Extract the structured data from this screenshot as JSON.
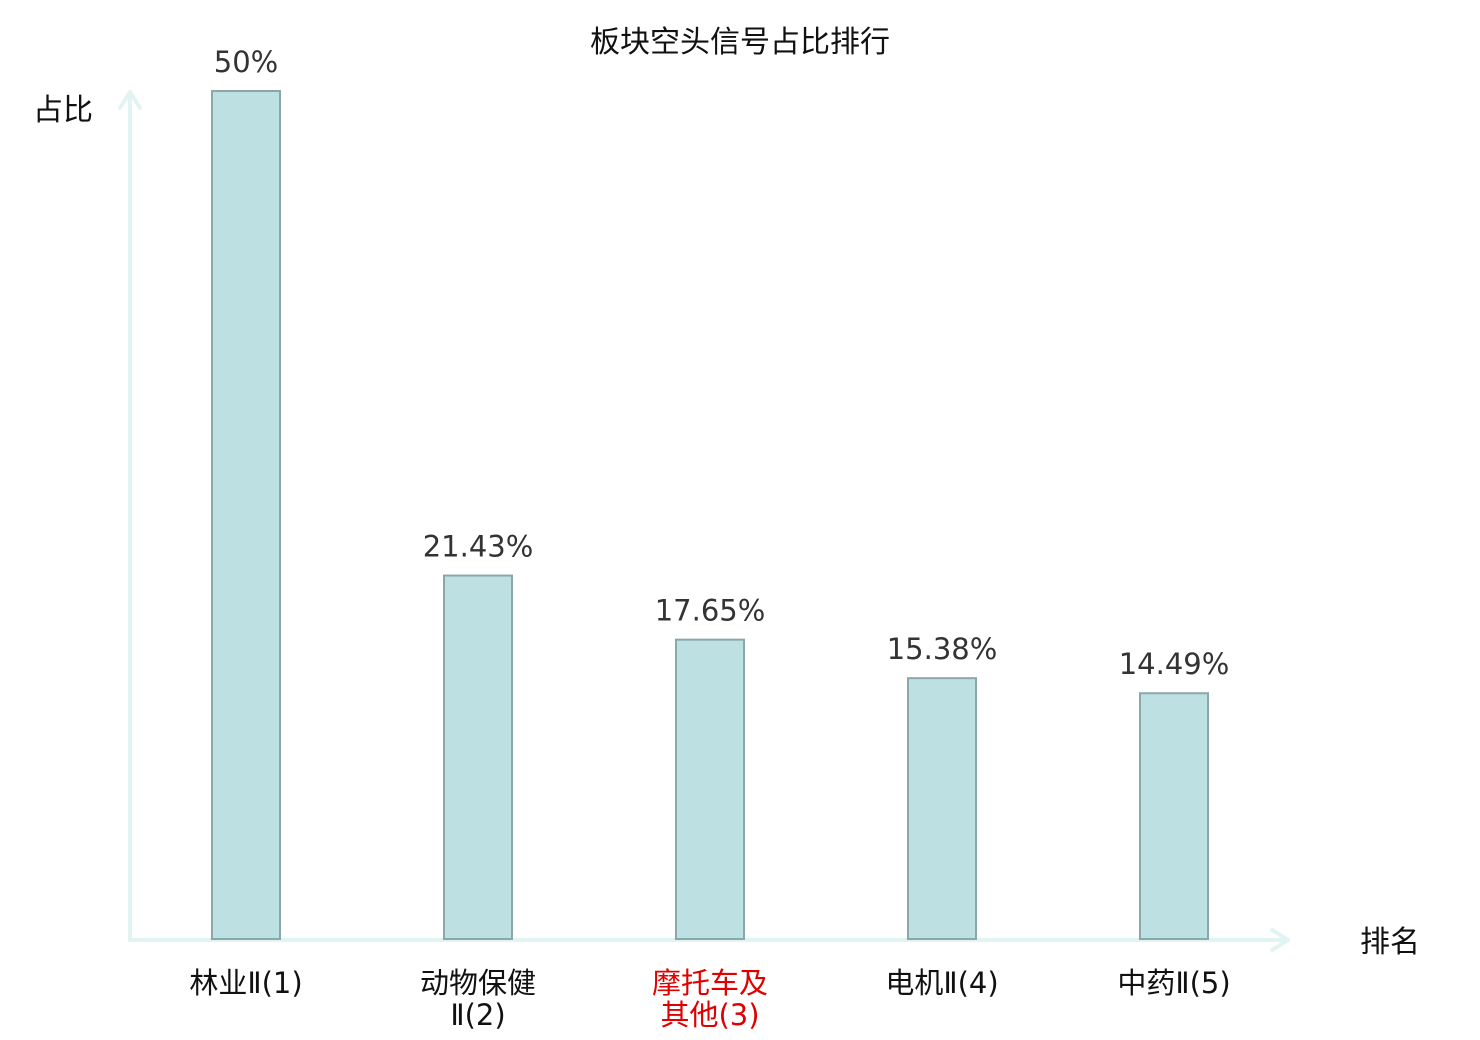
{
  "chart_data": {
    "type": "bar",
    "title": "板块空头信号占比排行",
    "ylabel": "占比",
    "xlabel": "排名",
    "categories": [
      [
        "林业Ⅱ(1)"
      ],
      [
        "动物保健",
        "Ⅱ(2)"
      ],
      [
        "摩托车及",
        "其他(3)"
      ],
      [
        "电机Ⅱ(4)"
      ],
      [
        "中药Ⅱ(5)"
      ]
    ],
    "values": [
      50,
      21.43,
      17.65,
      15.38,
      14.49
    ],
    "value_labels": [
      "50%",
      "21.43%",
      "17.65%",
      "15.38%",
      "14.49%"
    ],
    "highlight_index": 2,
    "ylim": [
      0,
      50
    ],
    "grid": false,
    "colors": {
      "bar_fill": "#bde0e2",
      "bar_stroke": "#8aa8aa",
      "axis": "#e2f4f1",
      "highlight_label": "#e00000"
    }
  }
}
